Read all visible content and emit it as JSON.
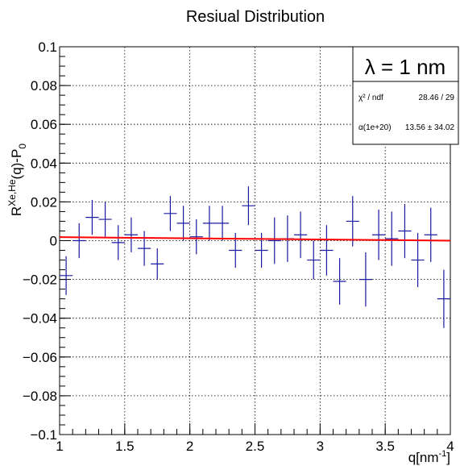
{
  "chart_data": {
    "type": "scatter",
    "title": "Resiual Distribution",
    "xlabel": "q[nm",
    "xlabel_sup": "-1",
    "xlabel_suffix": "]",
    "ylabel": {
      "main": "R",
      "superscript": "Xe,He",
      "middle": "(q)-P",
      "subscript": "0"
    },
    "xlim": [
      1,
      4
    ],
    "ylim": [
      -0.1,
      0.1
    ],
    "grid": true,
    "x_ticks": [
      "1",
      "1.5",
      "2",
      "2.5",
      "3",
      "3.5",
      "4"
    ],
    "x_tick_values": [
      1,
      1.5,
      2,
      2.5,
      3,
      3.5,
      4
    ],
    "y_ticks": [
      "0.1",
      "0.08",
      "0.06",
      "0.04",
      "0.02",
      "0",
      "−0.02",
      "−0.04",
      "−0.06",
      "−0.08",
      "−0.1"
    ],
    "y_tick_values": [
      0.1,
      0.08,
      0.06,
      0.04,
      0.02,
      0,
      -0.02,
      -0.04,
      -0.06,
      -0.08,
      -0.1
    ],
    "series": [
      {
        "kind": "error_points",
        "color": "#1a1aa0",
        "x_half_width": 0.05,
        "points": [
          {
            "x": 1.05,
            "y": -0.018,
            "err": 0.01
          },
          {
            "x": 1.15,
            "y": 0.0,
            "err": 0.009
          },
          {
            "x": 1.25,
            "y": 0.012,
            "err": 0.009
          },
          {
            "x": 1.35,
            "y": 0.011,
            "err": 0.009
          },
          {
            "x": 1.45,
            "y": -0.001,
            "err": 0.009
          },
          {
            "x": 1.55,
            "y": 0.003,
            "err": 0.009
          },
          {
            "x": 1.65,
            "y": -0.004,
            "err": 0.009
          },
          {
            "x": 1.75,
            "y": -0.012,
            "err": 0.008
          },
          {
            "x": 1.85,
            "y": 0.014,
            "err": 0.009
          },
          {
            "x": 1.95,
            "y": 0.009,
            "err": 0.009
          },
          {
            "x": 2.05,
            "y": 0.002,
            "err": 0.009
          },
          {
            "x": 2.15,
            "y": 0.009,
            "err": 0.009
          },
          {
            "x": 2.25,
            "y": 0.009,
            "err": 0.009
          },
          {
            "x": 2.35,
            "y": -0.005,
            "err": 0.009
          },
          {
            "x": 2.45,
            "y": 0.018,
            "err": 0.01
          },
          {
            "x": 2.55,
            "y": -0.005,
            "err": 0.009
          },
          {
            "x": 2.65,
            "y": 0.0,
            "err": 0.012
          },
          {
            "x": 2.75,
            "y": 0.001,
            "err": 0.012
          },
          {
            "x": 2.85,
            "y": 0.003,
            "err": 0.012
          },
          {
            "x": 2.95,
            "y": -0.01,
            "err": 0.01
          },
          {
            "x": 3.05,
            "y": -0.005,
            "err": 0.013
          },
          {
            "x": 3.15,
            "y": -0.021,
            "err": 0.012
          },
          {
            "x": 3.25,
            "y": 0.01,
            "err": 0.013
          },
          {
            "x": 3.35,
            "y": -0.02,
            "err": 0.014
          },
          {
            "x": 3.45,
            "y": 0.003,
            "err": 0.013
          },
          {
            "x": 3.55,
            "y": 0.001,
            "err": 0.014
          },
          {
            "x": 3.65,
            "y": 0.005,
            "err": 0.014
          },
          {
            "x": 3.75,
            "y": -0.01,
            "err": 0.014
          },
          {
            "x": 3.85,
            "y": 0.003,
            "err": 0.014
          },
          {
            "x": 3.95,
            "y": -0.03,
            "err": 0.015
          }
        ]
      },
      {
        "kind": "fit_line",
        "color": "#ff0000",
        "points": [
          {
            "x": 1.0,
            "y": 0.0018
          },
          {
            "x": 4.0,
            "y": 0.0
          }
        ]
      }
    ],
    "stats_box": {
      "placement": "top-right",
      "header": "λ = 1 nm",
      "rows": [
        {
          "label": "χ² / ndf",
          "value": "28.46 / 29"
        },
        {
          "label": "α(1e+20)",
          "value": "13.56 ± 34.02"
        }
      ]
    }
  }
}
